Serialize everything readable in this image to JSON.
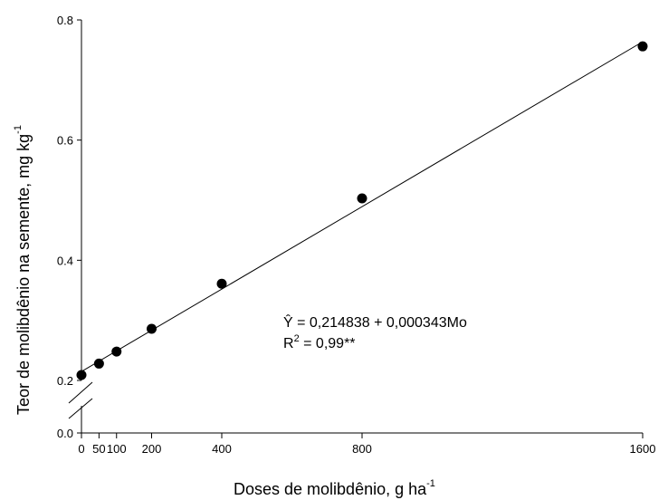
{
  "chart_data": {
    "type": "scatter",
    "xlabel": "Doses de molibdênio, g  ha",
    "xlabel_sup": "-1",
    "ylabel": "Teor de molibdênio na semente, mg kg",
    "ylabel_sup": "-1",
    "x_ticks": [
      {
        "value": 0,
        "label": "0"
      },
      {
        "value": 50,
        "label": "50"
      },
      {
        "value": 100,
        "label": "100"
      },
      {
        "value": 200,
        "label": "200"
      },
      {
        "value": 400,
        "label": "400"
      },
      {
        "value": 800,
        "label": "800"
      },
      {
        "value": 1600,
        "label": "1600"
      }
    ],
    "y_ticks": [
      {
        "value": 0.0,
        "label": "0.0"
      },
      {
        "value": 0.2,
        "label": "0.2"
      },
      {
        "value": 0.4,
        "label": "0.4"
      },
      {
        "value": 0.6,
        "label": "0.6"
      },
      {
        "value": 0.8,
        "label": "0.8"
      }
    ],
    "xlim": [
      0,
      1600
    ],
    "ylim_upper": [
      0.2,
      0.8
    ],
    "axis_break": true,
    "series": [
      {
        "x": [
          0,
          50,
          100,
          200,
          400,
          800,
          1600
        ],
        "y": [
          0.209,
          0.228,
          0.248,
          0.286,
          0.361,
          0.503,
          0.756
        ]
      }
    ],
    "fit_line": {
      "intercept": 0.214838,
      "slope": 0.000343,
      "x_range": [
        0,
        1600
      ]
    },
    "equation": "Ŷ = 0,214838 + 0,000343Mo",
    "r2_label": "R",
    "r2_sup": "2",
    "r2_value": " = 0,99**",
    "grid": false
  }
}
